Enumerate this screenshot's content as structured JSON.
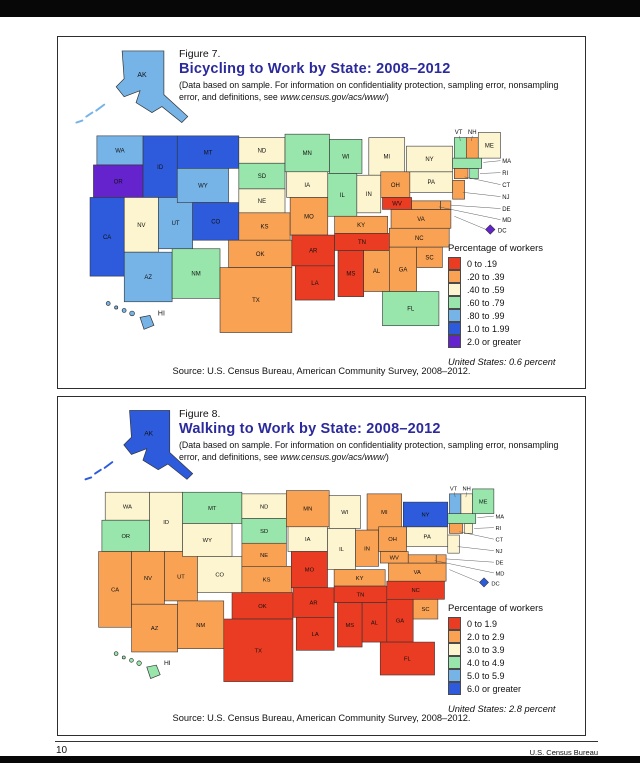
{
  "page": {
    "page_number": "10",
    "footer_right": "U.S. Census Bureau"
  },
  "figures": [
    {
      "figure_label": "Figure 7.",
      "title": "Bicycling to Work by State: 2008–2012",
      "note_prefix": "(Data based on sample. For information on confidentiality protection, sampling error, nonsampling error, and definitions, see ",
      "note_url": "www.census.gov/acs/www/",
      "note_suffix": ")",
      "legend_title": "Percentage of workers",
      "us_note": "United States: 0.6 percent",
      "source": "Source: U.S. Census Bureau, American Community Survey, 2008–2012."
    },
    {
      "figure_label": "Figure 8.",
      "title": "Walking to Work by State: 2008–2012",
      "note_prefix": "(Data based on sample. For information on confidentiality protection, sampling error, nonsampling error, and definitions, see ",
      "note_url": "www.census.gov/acs/www/",
      "note_suffix": ")",
      "legend_title": "Percentage of workers",
      "us_note": "United States: 2.8 percent",
      "source": "Source: U.S. Census Bureau, American Community Survey, 2008–2012."
    }
  ],
  "chart_data": [
    {
      "type": "heatmap",
      "subtype": "us-state-choropleth",
      "title": "Bicycling to Work by State: 2008–2012",
      "legend_title": "Percentage of workers",
      "us_average": "0.6 percent",
      "classes": [
        {
          "label": "0 to .19",
          "color": "#ea3b23"
        },
        {
          "label": ".20 to .39",
          "color": "#f9a254"
        },
        {
          "label": ".40 to .59",
          "color": "#fdf5d0"
        },
        {
          "label": ".60 to .79",
          "color": "#98e6ab"
        },
        {
          "label": ".80 to .99",
          "color": "#76b4e8"
        },
        {
          "label": "1.0 to 1.99",
          "color": "#2d5bdb"
        },
        {
          "label": "2.0 or greater",
          "color": "#6423cd"
        }
      ],
      "states": {
        "AK": ".80 to .99",
        "AL": ".20 to .39",
        "AR": "0 to .19",
        "AZ": ".80 to .99",
        "CA": "1.0 to 1.99",
        "CO": "1.0 to 1.99",
        "CT": ".20 to .39",
        "DC": "2.0 or greater",
        "DE": ".20 to .39",
        "FL": ".60 to .79",
        "GA": ".20 to .39",
        "HI": ".80 to .99",
        "IA": ".40 to .59",
        "ID": "1.0 to 1.99",
        "IL": ".60 to .79",
        "IN": ".40 to .59",
        "KS": ".20 to .39",
        "KY": ".20 to .39",
        "LA": "0 to .19",
        "MA": ".60 to .79",
        "MD": ".20 to .39",
        "ME": ".40 to .59",
        "MI": ".40 to .59",
        "MN": ".60 to .79",
        "MO": ".20 to .39",
        "MS": "0 to .19",
        "MT": "1.0 to 1.99",
        "NC": ".20 to .39",
        "ND": ".40 to .59",
        "NE": ".40 to .59",
        "NH": ".20 to .39",
        "NJ": ".20 to .39",
        "NM": ".60 to .79",
        "NV": ".40 to .59",
        "NY": ".40 to .59",
        "OH": ".20 to .39",
        "OK": ".20 to .39",
        "OR": "2.0 or greater",
        "PA": ".40 to .59",
        "RI": ".60 to .79",
        "SC": ".20 to .39",
        "SD": ".60 to .79",
        "TN": "0 to .19",
        "TX": ".20 to .39",
        "UT": ".80 to .99",
        "VA": ".20 to .39",
        "VT": ".60 to .79",
        "WA": ".80 to .99",
        "WI": ".60 to .79",
        "WV": "0 to .19",
        "WY": ".80 to .99"
      }
    },
    {
      "type": "heatmap",
      "subtype": "us-state-choropleth",
      "title": "Walking to Work by State: 2008–2012",
      "legend_title": "Percentage of workers",
      "us_average": "2.8 percent",
      "classes": [
        {
          "label": "0 to 1.9",
          "color": "#ea3b23"
        },
        {
          "label": "2.0 to 2.9",
          "color": "#f9a254"
        },
        {
          "label": "3.0 to 3.9",
          "color": "#fdf5d0"
        },
        {
          "label": "4.0 to 4.9",
          "color": "#98e6ab"
        },
        {
          "label": "5.0 to 5.9",
          "color": "#76b4e8"
        },
        {
          "label": "6.0 or greater",
          "color": "#2d5bdb"
        }
      ],
      "states": {
        "AK": "6.0 or greater",
        "AL": "0 to 1.9",
        "AR": "0 to 1.9",
        "AZ": "2.0 to 2.9",
        "CA": "2.0 to 2.9",
        "CO": "3.0 to 3.9",
        "CT": "2.0 to 2.9",
        "DC": "6.0 or greater",
        "DE": "2.0 to 2.9",
        "FL": "0 to 1.9",
        "GA": "0 to 1.9",
        "HI": "4.0 to 4.9",
        "IA": "3.0 to 3.9",
        "ID": "3.0 to 3.9",
        "IL": "3.0 to 3.9",
        "IN": "2.0 to 2.9",
        "KS": "2.0 to 2.9",
        "KY": "2.0 to 2.9",
        "LA": "0 to 1.9",
        "MA": "4.0 to 4.9",
        "MD": "2.0 to 2.9",
        "ME": "4.0 to 4.9",
        "MI": "2.0 to 2.9",
        "MN": "2.0 to 2.9",
        "MO": "0 to 1.9",
        "MS": "0 to 1.9",
        "MT": "4.0 to 4.9",
        "NC": "0 to 1.9",
        "ND": "3.0 to 3.9",
        "NE": "2.0 to 2.9",
        "NH": "3.0 to 3.9",
        "NJ": "3.0 to 3.9",
        "NM": "2.0 to 2.9",
        "NV": "2.0 to 2.9",
        "NY": "6.0 or greater",
        "OH": "2.0 to 2.9",
        "OK": "0 to 1.9",
        "OR": "4.0 to 4.9",
        "PA": "3.0 to 3.9",
        "RI": "3.0 to 3.9",
        "SC": "2.0 to 2.9",
        "SD": "4.0 to 4.9",
        "TN": "0 to 1.9",
        "TX": "0 to 1.9",
        "UT": "2.0 to 2.9",
        "VA": "2.0 to 2.9",
        "VT": "5.0 to 5.9",
        "WA": "3.0 to 3.9",
        "WI": "3.0 to 3.9",
        "WV": "2.0 to 2.9",
        "WY": "3.0 to 3.9"
      }
    }
  ]
}
